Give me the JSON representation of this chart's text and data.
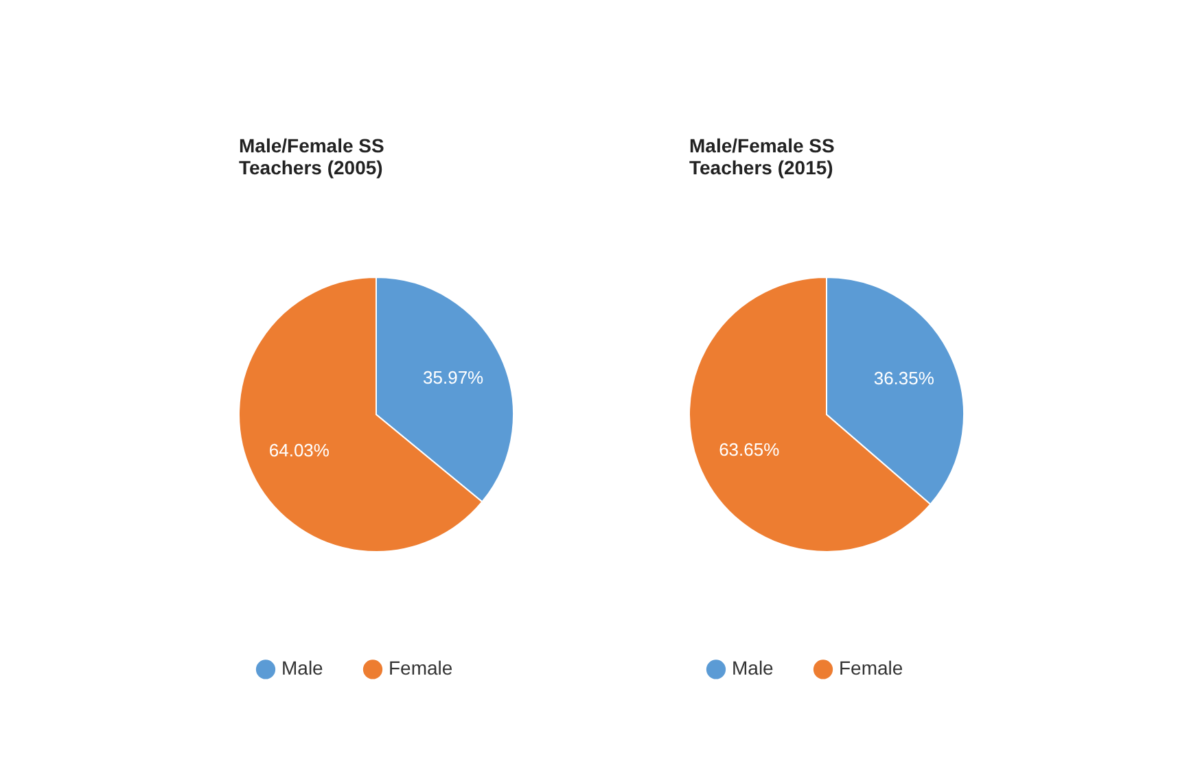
{
  "chart_data": [
    {
      "type": "pie",
      "title": "Male/Female SS\nTeachers (2005)",
      "categories": [
        "Male",
        "Female"
      ],
      "values": [
        35.97,
        64.03
      ],
      "colors": [
        "#5b9bd5",
        "#ed7d31"
      ],
      "value_labels": [
        "35.97%",
        "64.03%"
      ],
      "legend": "bottom"
    },
    {
      "type": "pie",
      "title": "Male/Female SS\nTeachers (2015)",
      "categories": [
        "Male",
        "Female"
      ],
      "values": [
        36.35,
        63.65
      ],
      "colors": [
        "#5b9bd5",
        "#ed7d31"
      ],
      "value_labels": [
        "36.35%",
        "63.65%"
      ],
      "legend": "bottom"
    }
  ]
}
